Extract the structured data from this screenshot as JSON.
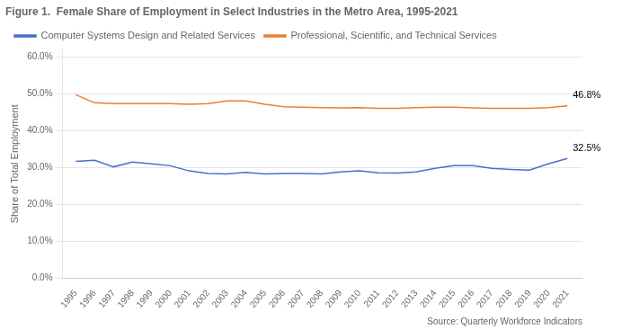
{
  "chart_data": {
    "type": "line",
    "title": "Figure 1.  Female Share of Employment in Select Industries in the Metro Area, 1995-2021",
    "ylabel": "Share of Total Employment",
    "source": "Source: Quarterly Workforce Indicators",
    "x": [
      1995,
      1996,
      1997,
      1998,
      1999,
      2000,
      2001,
      2002,
      2003,
      2004,
      2005,
      2006,
      2007,
      2008,
      2009,
      2010,
      2011,
      2012,
      2013,
      2014,
      2015,
      2016,
      2017,
      2018,
      2019,
      2020,
      2021
    ],
    "series": [
      {
        "name": "Computer Systems Design and Related Services",
        "color": "#4472C4",
        "values": [
          0.317,
          0.32,
          0.302,
          0.315,
          0.31,
          0.305,
          0.291,
          0.284,
          0.283,
          0.287,
          0.283,
          0.284,
          0.284,
          0.283,
          0.288,
          0.291,
          0.286,
          0.285,
          0.288,
          0.298,
          0.305,
          0.305,
          0.298,
          0.295,
          0.293,
          0.31,
          0.325
        ]
      },
      {
        "name": "Professional, Scientific, and Technical Services",
        "color": "#ED7D31",
        "values": [
          0.498,
          0.476,
          0.474,
          0.474,
          0.474,
          0.474,
          0.472,
          0.474,
          0.481,
          0.481,
          0.472,
          0.465,
          0.464,
          0.463,
          0.462,
          0.463,
          0.461,
          0.461,
          0.463,
          0.464,
          0.464,
          0.462,
          0.461,
          0.461,
          0.461,
          0.463,
          0.468
        ]
      }
    ],
    "annotations": [
      {
        "text": "46.8%",
        "x": 2021,
        "y": 0.468
      },
      {
        "text": "32.5%",
        "x": 2021,
        "y": 0.325
      }
    ],
    "xlim": [
      1994.3,
      2021.8
    ],
    "xticks": [
      1995,
      1996,
      1997,
      1998,
      1999,
      2000,
      2001,
      2002,
      2003,
      2004,
      2005,
      2006,
      2007,
      2008,
      2009,
      2010,
      2011,
      2012,
      2013,
      2014,
      2015,
      2016,
      2017,
      2018,
      2019,
      2020,
      2021
    ],
    "ylim": [
      0.0,
      0.62
    ],
    "yticks": [
      {
        "value": 0.0,
        "label": "0.0%"
      },
      {
        "value": 0.1,
        "label": "10.0%"
      },
      {
        "value": 0.2,
        "label": "20.0%"
      },
      {
        "value": 0.3,
        "label": "30.0%"
      },
      {
        "value": 0.4,
        "label": "40.0%"
      },
      {
        "value": 0.5,
        "label": "50.0%"
      },
      {
        "value": 0.6,
        "label": "60.0%"
      }
    ],
    "grid": "y",
    "legend": "upper left"
  }
}
